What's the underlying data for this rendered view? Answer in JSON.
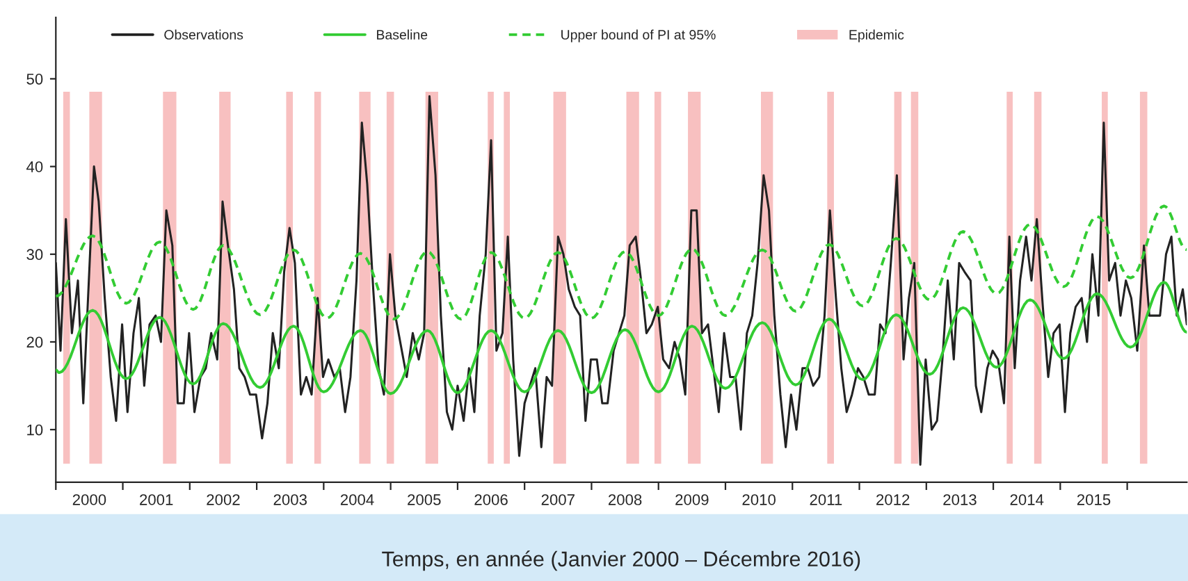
{
  "chart_data": {
    "type": "line",
    "xlabel": "Temps, en année (Janvier 2000 – Décembre 2016)",
    "xlim": [
      2000,
      2016.89
    ],
    "xticks": [
      {
        "value": 2000,
        "label": null
      },
      {
        "value": 2000.5,
        "label": "2000"
      },
      {
        "value": 2001,
        "label": null
      },
      {
        "value": 2001.5,
        "label": "2001"
      },
      {
        "value": 2002,
        "label": null
      },
      {
        "value": 2002.5,
        "label": "2002"
      },
      {
        "value": 2003,
        "label": null
      },
      {
        "value": 2003.5,
        "label": "2003"
      },
      {
        "value": 2004,
        "label": null
      },
      {
        "value": 2004.5,
        "label": "2004"
      },
      {
        "value": 2005,
        "label": null
      },
      {
        "value": 2005.5,
        "label": "2005"
      },
      {
        "value": 2006,
        "label": null
      },
      {
        "value": 2006.5,
        "label": "2006"
      },
      {
        "value": 2007,
        "label": null
      },
      {
        "value": 2007.5,
        "label": "2007"
      },
      {
        "value": 2008,
        "label": null
      },
      {
        "value": 2008.5,
        "label": "2008"
      },
      {
        "value": 2009,
        "label": null
      },
      {
        "value": 2009.5,
        "label": "2009"
      },
      {
        "value": 2010,
        "label": null
      },
      {
        "value": 2010.5,
        "label": "2010"
      },
      {
        "value": 2011,
        "label": null
      },
      {
        "value": 2011.5,
        "label": "2011"
      },
      {
        "value": 2012,
        "label": null
      },
      {
        "value": 2012.5,
        "label": "2012"
      },
      {
        "value": 2013,
        "label": null
      },
      {
        "value": 2013.5,
        "label": "2013"
      },
      {
        "value": 2014,
        "label": null
      },
      {
        "value": 2014.5,
        "label": "2014"
      },
      {
        "value": 2015,
        "label": null
      },
      {
        "value": 2015.5,
        "label": "2015"
      },
      {
        "value": 2016,
        "label": null
      }
    ],
    "ylim": [
      4,
      57
    ],
    "yticks": [
      10,
      20,
      30,
      40,
      50
    ],
    "grid": false,
    "legend": "top",
    "series": [
      {
        "name": "Observations",
        "color": "#222222",
        "line_style": "solid",
        "x": [
          2000.0,
          2000.07,
          2000.15,
          2000.24,
          2000.33,
          2000.41,
          2000.57,
          2000.64,
          2000.73,
          2000.82,
          2000.9,
          2000.99,
          2001.07,
          2001.16,
          2001.24,
          2001.32,
          2001.4,
          2001.49,
          2001.57,
          2001.65,
          2001.74,
          2001.82,
          2001.91,
          2001.99,
          2002.07,
          2002.16,
          2002.24,
          2002.32,
          2002.41,
          2002.49,
          2002.57,
          2002.66,
          2002.74,
          2002.82,
          2002.9,
          2002.99,
          2003.08,
          2003.16,
          2003.24,
          2003.33,
          2003.41,
          2003.49,
          2003.57,
          2003.66,
          2003.74,
          2003.82,
          2003.91,
          2003.99,
          2004.07,
          2004.16,
          2004.24,
          2004.32,
          2004.4,
          2004.49,
          2004.57,
          2004.65,
          2004.74,
          2004.82,
          2004.9,
          2004.99,
          2005.07,
          2005.24,
          2005.33,
          2005.42,
          2005.5,
          2005.58,
          2005.67,
          2005.75,
          2005.84,
          2005.92,
          2006.0,
          2006.09,
          2006.17,
          2006.25,
          2006.33,
          2006.42,
          2006.5,
          2006.58,
          2006.67,
          2006.75,
          2006.83,
          2006.92,
          2007.0,
          2007.08,
          2007.16,
          2007.25,
          2007.33,
          2007.41,
          2007.5,
          2007.58,
          2007.66,
          2007.75,
          2007.83,
          2007.91,
          2007.99,
          2008.08,
          2008.16,
          2008.24,
          2008.33,
          2008.49,
          2008.57,
          2008.66,
          2008.74,
          2008.82,
          2008.9,
          2008.99,
          2009.07,
          2009.16,
          2009.24,
          2009.32,
          2009.4,
          2009.49,
          2009.57,
          2009.65,
          2009.74,
          2009.82,
          2009.9,
          2009.98,
          2010.07,
          2010.15,
          2010.23,
          2010.32,
          2010.4,
          2010.48,
          2010.57,
          2010.65,
          2010.73,
          2010.82,
          2010.9,
          2010.98,
          2011.06,
          2011.15,
          2011.23,
          2011.31,
          2011.4,
          2011.48,
          2011.56,
          2011.65,
          2011.73,
          2011.81,
          2011.89,
          2011.98,
          2012.06,
          2012.14,
          2012.23,
          2012.31,
          2012.39,
          2012.47,
          2012.56,
          2012.66,
          2012.74,
          2012.82,
          2012.91,
          2012.99,
          2013.08,
          2013.16,
          2013.24,
          2013.32,
          2013.41,
          2013.49,
          2013.57,
          2013.66,
          2013.74,
          2013.82,
          2013.91,
          2013.99,
          2014.07,
          2014.16,
          2014.24,
          2014.32,
          2014.4,
          2014.49,
          2014.57,
          2014.65,
          2014.74,
          2014.82,
          2014.9,
          2014.99,
          2015.07,
          2015.15,
          2015.23,
          2015.32,
          2015.4,
          2015.48,
          2015.57,
          2015.65,
          2015.73,
          2015.82,
          2015.9,
          2015.98,
          2016.06,
          2016.15,
          2016.25,
          2016.33,
          2016.41,
          2016.49,
          2016.58,
          2016.66,
          2016.74,
          2016.83,
          2016.89
        ],
        "values": [
          29,
          19,
          34,
          21,
          27,
          13,
          40,
          36,
          25,
          16,
          11,
          22,
          12,
          21,
          25,
          15,
          22,
          23,
          20,
          35,
          31,
          13,
          13,
          21,
          12,
          16,
          17,
          21,
          18,
          36,
          31,
          26,
          17,
          16,
          14,
          14,
          9,
          13,
          21,
          17,
          28,
          33,
          29,
          14,
          16,
          14,
          25,
          16,
          18,
          16,
          17,
          12,
          16,
          27,
          45,
          38,
          26,
          17,
          14,
          30,
          23,
          16,
          21,
          18,
          21,
          48,
          39,
          23,
          12,
          10,
          15,
          11,
          17,
          12,
          23,
          30,
          43,
          19,
          21,
          32,
          18,
          7,
          13,
          15,
          17,
          8,
          16,
          15,
          32,
          30,
          26,
          24,
          23,
          11,
          18,
          18,
          13,
          13,
          19,
          23,
          31,
          32,
          27,
          21,
          22,
          24,
          18,
          17,
          20,
          18,
          14,
          35,
          35,
          21,
          22,
          17,
          12,
          21,
          16,
          16,
          10,
          21,
          23,
          29,
          39,
          35,
          23,
          14,
          8,
          14,
          10,
          17,
          17,
          15,
          16,
          23,
          35,
          25,
          17,
          12,
          14,
          17,
          16,
          14,
          14,
          22,
          21,
          29,
          39,
          18,
          25,
          29,
          6,
          18,
          10,
          11,
          18,
          27,
          18,
          29,
          28,
          27,
          15,
          12,
          17,
          19,
          18,
          13,
          32,
          17,
          27,
          32,
          27,
          34,
          24,
          16,
          21,
          22,
          12,
          21,
          24,
          25,
          20,
          30,
          23,
          45,
          27,
          29,
          23,
          27,
          25,
          19,
          31,
          23,
          23,
          23,
          30,
          32,
          23,
          26,
          22
        ]
      },
      {
        "name": "Baseline",
        "color": "#33cc33",
        "line_style": "solid",
        "x": [
          2000.0,
          2000.05,
          2000.55,
          2001.05,
          2001.55,
          2002.05,
          2002.5,
          2003.05,
          2003.55,
          2004.0,
          2004.55,
          2005.0,
          2005.55,
          2006.0,
          2006.5,
          2007.0,
          2007.5,
          2008.0,
          2008.5,
          2009.0,
          2009.5,
          2010.0,
          2010.55,
          2011.05,
          2011.55,
          2012.05,
          2012.55,
          2013.05,
          2013.55,
          2014.05,
          2014.55,
          2015.05,
          2015.55,
          2016.05,
          2016.55,
          2016.89
        ],
        "values": [
          16.8,
          16.5,
          23.6,
          15.8,
          22.8,
          15.2,
          22.1,
          14.8,
          21.8,
          14.3,
          21.3,
          14.1,
          21.3,
          14.2,
          21.3,
          14.3,
          21.3,
          14.2,
          21.4,
          14.3,
          21.8,
          14.7,
          22.2,
          15.1,
          22.6,
          15.7,
          23.1,
          16.3,
          23.9,
          17.1,
          24.8,
          18.1,
          25.5,
          19.4,
          26.8,
          21.1
        ]
      },
      {
        "name": "Upper bound of PI at 95%",
        "color": "#33cc33",
        "line_style": "dashed",
        "x": [
          2000.0,
          2000.55,
          2001.05,
          2001.55,
          2002.05,
          2002.5,
          2003.05,
          2003.55,
          2004.05,
          2004.55,
          2005.05,
          2005.55,
          2006.05,
          2006.5,
          2007.0,
          2007.5,
          2008.0,
          2008.5,
          2009.0,
          2009.5,
          2010.0,
          2010.55,
          2011.05,
          2011.55,
          2012.05,
          2012.55,
          2013.05,
          2013.55,
          2014.05,
          2014.55,
          2015.05,
          2015.55,
          2016.05,
          2016.55,
          2016.89
        ],
        "values": [
          25.2,
          32.1,
          24.4,
          31.4,
          23.7,
          31.0,
          23.1,
          30.5,
          22.7,
          30.1,
          22.6,
          30.3,
          22.6,
          30.2,
          22.7,
          30.2,
          22.7,
          30.3,
          23.0,
          30.6,
          23.0,
          30.5,
          23.5,
          31.1,
          24.1,
          31.8,
          24.8,
          32.6,
          25.5,
          33.4,
          26.3,
          34.3,
          27.3,
          35.5,
          30.5
        ]
      }
    ],
    "bands": [
      {
        "axis": "x",
        "from": 2000.11,
        "to": 2000.21,
        "color": "#f8c0c0",
        "label": "Epidemic"
      },
      {
        "axis": "x",
        "from": 2000.5,
        "to": 2000.69,
        "color": "#f8c0c0"
      },
      {
        "axis": "x",
        "from": 2001.6,
        "to": 2001.8,
        "color": "#f8c0c0"
      },
      {
        "axis": "x",
        "from": 2002.44,
        "to": 2002.61,
        "color": "#f8c0c0"
      },
      {
        "axis": "x",
        "from": 2003.44,
        "to": 2003.54,
        "color": "#f8c0c0"
      },
      {
        "axis": "x",
        "from": 2003.86,
        "to": 2003.96,
        "color": "#f8c0c0"
      },
      {
        "axis": "x",
        "from": 2004.53,
        "to": 2004.7,
        "color": "#f8c0c0"
      },
      {
        "axis": "x",
        "from": 2004.94,
        "to": 2005.05,
        "color": "#f8c0c0"
      },
      {
        "axis": "x",
        "from": 2005.52,
        "to": 2005.71,
        "color": "#f8c0c0"
      },
      {
        "axis": "x",
        "from": 2006.45,
        "to": 2006.54,
        "color": "#f8c0c0"
      },
      {
        "axis": "x",
        "from": 2006.69,
        "to": 2006.78,
        "color": "#f8c0c0"
      },
      {
        "axis": "x",
        "from": 2007.43,
        "to": 2007.62,
        "color": "#f8c0c0"
      },
      {
        "axis": "x",
        "from": 2008.52,
        "to": 2008.71,
        "color": "#f8c0c0"
      },
      {
        "axis": "x",
        "from": 2008.94,
        "to": 2009.04,
        "color": "#f8c0c0"
      },
      {
        "axis": "x",
        "from": 2009.44,
        "to": 2009.63,
        "color": "#f8c0c0"
      },
      {
        "axis": "x",
        "from": 2010.53,
        "to": 2010.71,
        "color": "#f8c0c0"
      },
      {
        "axis": "x",
        "from": 2011.52,
        "to": 2011.62,
        "color": "#f8c0c0"
      },
      {
        "axis": "x",
        "from": 2012.52,
        "to": 2012.63,
        "color": "#f8c0c0"
      },
      {
        "axis": "x",
        "from": 2012.77,
        "to": 2012.88,
        "color": "#f8c0c0"
      },
      {
        "axis": "x",
        "from": 2014.2,
        "to": 2014.29,
        "color": "#f8c0c0"
      },
      {
        "axis": "x",
        "from": 2014.61,
        "to": 2014.72,
        "color": "#f8c0c0"
      },
      {
        "axis": "x",
        "from": 2015.62,
        "to": 2015.71,
        "color": "#f8c0c0"
      },
      {
        "axis": "x",
        "from": 2016.19,
        "to": 2016.3,
        "color": "#f8c0c0"
      }
    ]
  }
}
